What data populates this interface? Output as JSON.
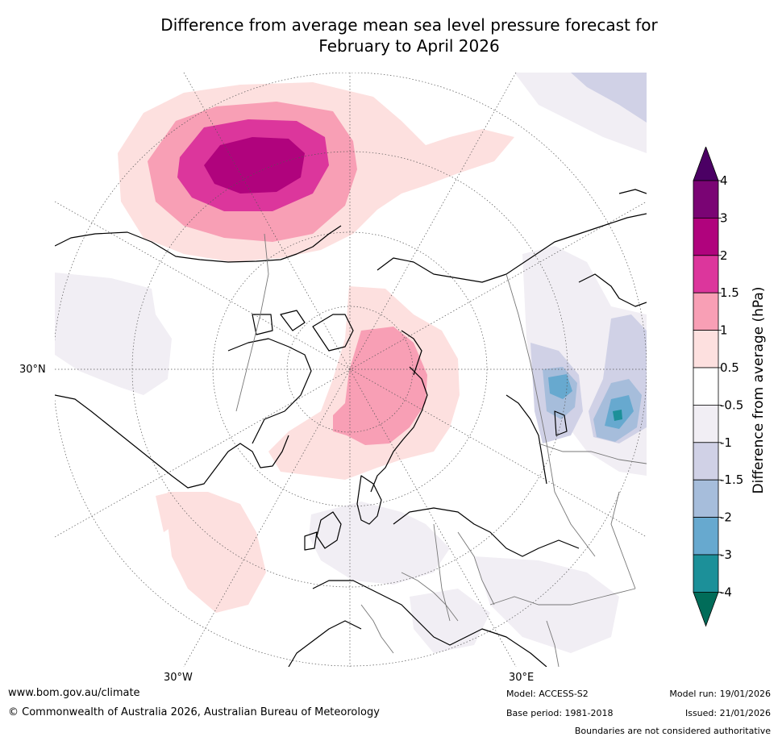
{
  "title_line1": "Difference from average mean sea level pressure forecast for",
  "title_line2": "February to April 2026",
  "map": {
    "projection": "north polar stereographic",
    "lat_label": "30°N",
    "lon_labels": [
      "30°W",
      "30°E"
    ]
  },
  "colorbar": {
    "title": "Difference from average (hPa)",
    "ticks": [
      "4",
      "3",
      "2",
      "1.5",
      "1",
      "0.5",
      "-0.5",
      "-1",
      "-1.5",
      "-2",
      "-3",
      "-4"
    ],
    "colors": [
      "#4b0064",
      "#7a0474",
      "#b0037d",
      "#dc369c",
      "#f89fb5",
      "#fde0df",
      "#ffffff",
      "#f1eef4",
      "#d0d1e6",
      "#a6bddb",
      "#67a9cf",
      "#1c9099",
      "#016c59"
    ]
  },
  "footer": {
    "website": "www.bom.gov.au/climate",
    "copyright": "© Commonwealth of Australia 2026, Australian Bureau of Meteorology",
    "model": "Model: ACCESS-S2",
    "base_period": "Base period: 1981-2018",
    "model_run": "Model run: 19/01/2026",
    "issued": "Issued: 21/01/2026",
    "disclaimer": "Boundaries are not considered authoritative"
  }
}
